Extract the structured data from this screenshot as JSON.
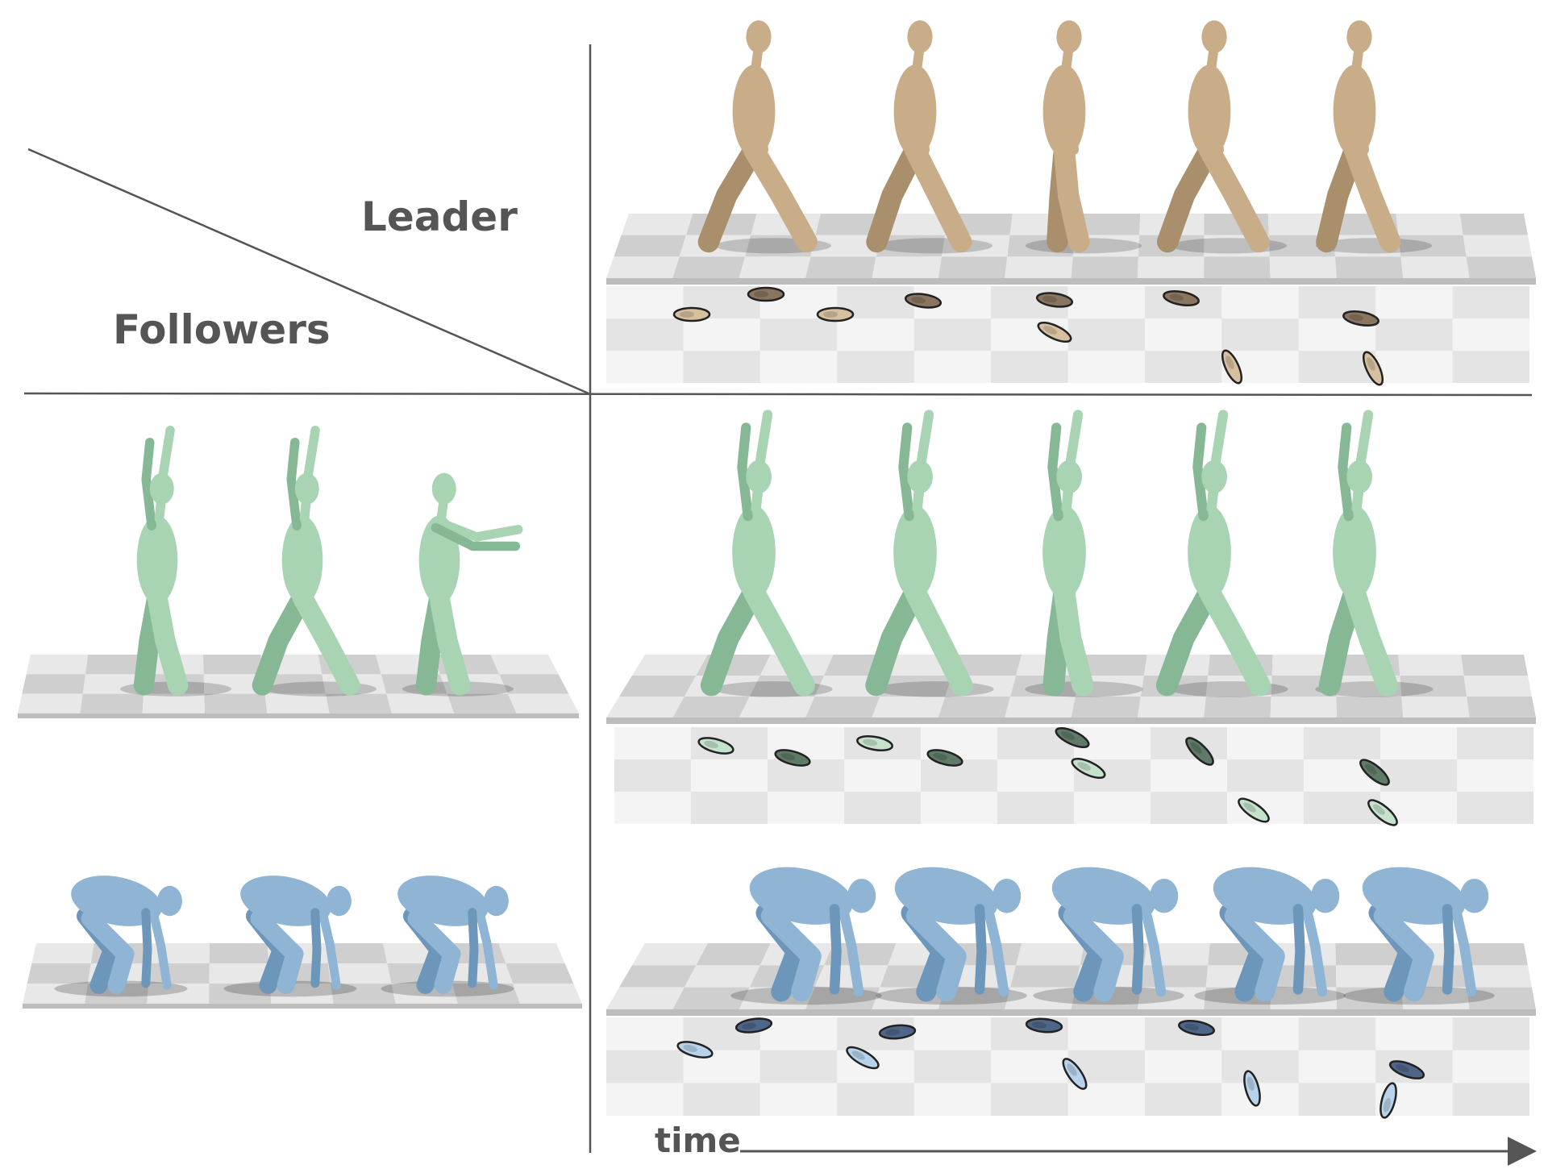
{
  "labels": {
    "leader": "Leader",
    "followers": "Followers",
    "time": "time"
  },
  "groups": [
    {
      "name": "leader",
      "body_color": "#c8ad88",
      "body_shade": "#a98f6c",
      "footprint_color": "#d6c0a0",
      "footprint_dark": "#8a7560"
    },
    {
      "name": "follower-green",
      "body_color": "#a8d4b4",
      "body_shade": "#86b896",
      "footprint_color": "#c4e2cc",
      "footprint_dark": "#5f7a66"
    },
    {
      "name": "follower-blue",
      "body_color": "#8fb4d4",
      "body_shade": "#6d96bb",
      "footprint_color": "#b8d2ea",
      "footprint_dark": "#4e6688"
    }
  ],
  "frames_per_row": 5,
  "example_frames": 3,
  "floor": {
    "light": "#e8e8e8",
    "dark": "#cfcfcf",
    "edge": "#bdbdbd"
  },
  "line_color": "#555555"
}
